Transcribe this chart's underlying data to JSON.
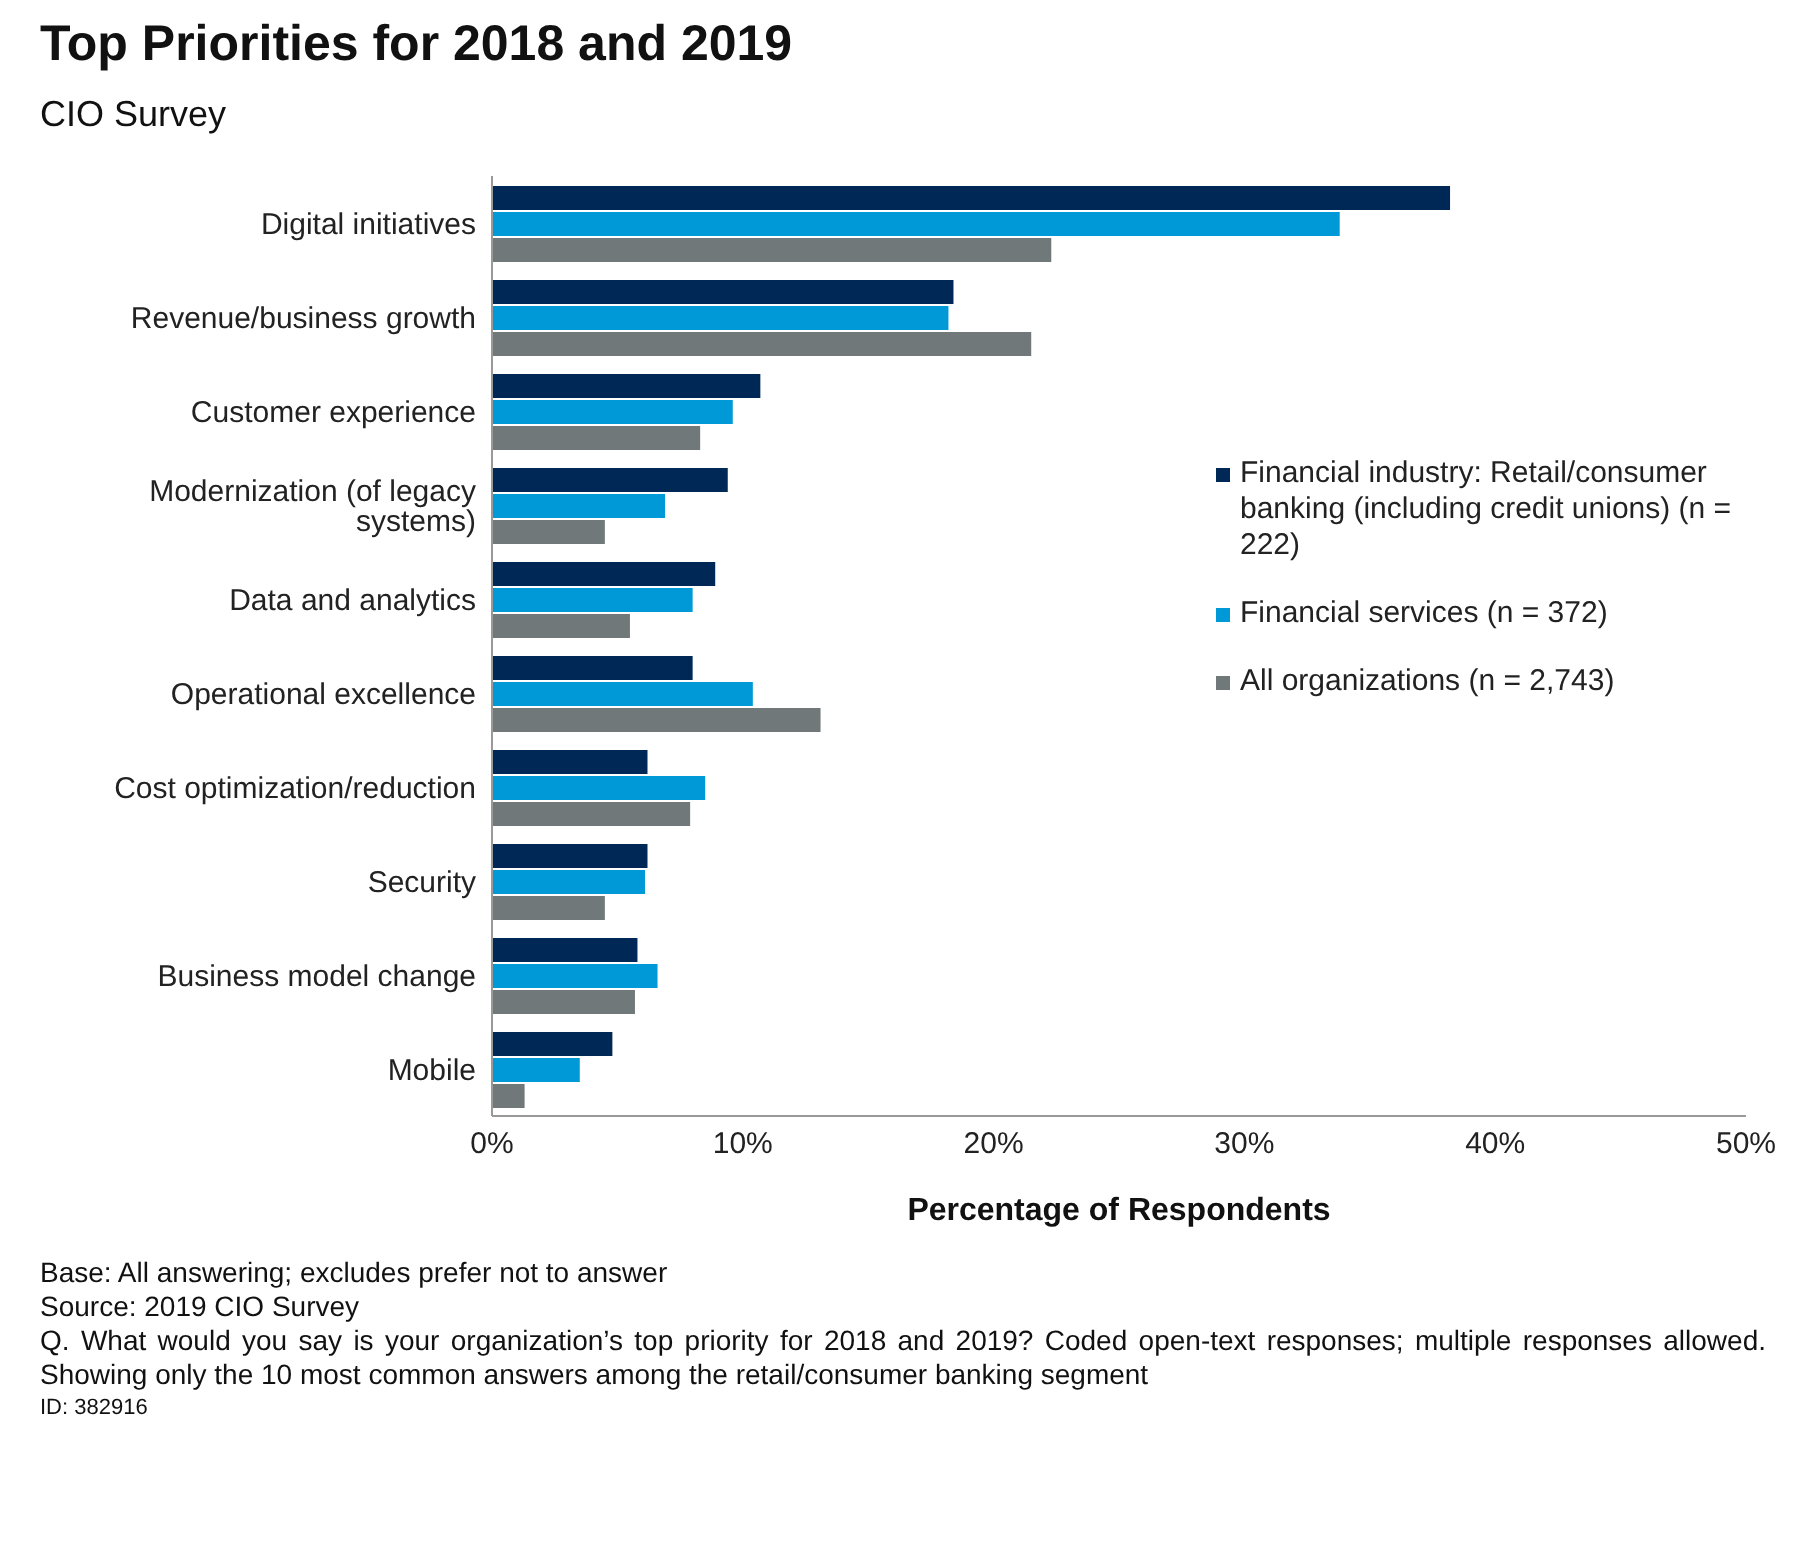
{
  "chart_data": {
    "type": "bar",
    "orientation": "horizontal",
    "title": "Top Priorities for 2018 and 2019",
    "subtitle": "CIO Survey",
    "xlabel": "Percentage of Respondents",
    "categories": [
      "Digital initiatives",
      "Revenue/business growth",
      "Customer experience",
      "Modernization (of legacy systems)",
      "Data and analytics",
      "Operational excellence",
      "Cost optimization/reduction",
      "Security",
      "Business model change",
      "Mobile"
    ],
    "series": [
      {
        "name": "Financial industry: Retail/consumer banking (including credit unions) (n = 222)",
        "color": "#002856",
        "values": [
          38.2,
          18.4,
          10.7,
          9.4,
          8.9,
          8.0,
          6.2,
          6.2,
          5.8,
          4.8
        ]
      },
      {
        "name": "Financial services (n = 372)",
        "color": "#0099d8",
        "values": [
          33.8,
          18.2,
          9.6,
          6.9,
          8.0,
          10.4,
          8.5,
          6.1,
          6.6,
          3.5
        ]
      },
      {
        "name": "All organizations (n = 2,743)",
        "color": "#70787a",
        "values": [
          22.3,
          21.5,
          8.3,
          4.5,
          5.5,
          13.1,
          7.9,
          4.5,
          5.7,
          1.3
        ]
      }
    ],
    "xlim": [
      0,
      50
    ],
    "xticks": [
      {
        "value": 0,
        "label": "0%"
      },
      {
        "value": 10,
        "label": "10%"
      },
      {
        "value": 20,
        "label": "20%"
      },
      {
        "value": 30,
        "label": "30%"
      },
      {
        "value": 40,
        "label": "40%"
      },
      {
        "value": 50,
        "label": "50%"
      }
    ],
    "grid": false,
    "legend": "right",
    "annotations": [
      "Base: All answering; excludes prefer not to answer",
      "Source: 2019 CIO Survey",
      "Q. What would you say is your organization’s top priority for 2018 and 2019? Coded open-text responses; multiple responses allowed.  Showing only the 10 most common answers among the retail/consumer banking segment",
      "ID: 382916"
    ]
  }
}
